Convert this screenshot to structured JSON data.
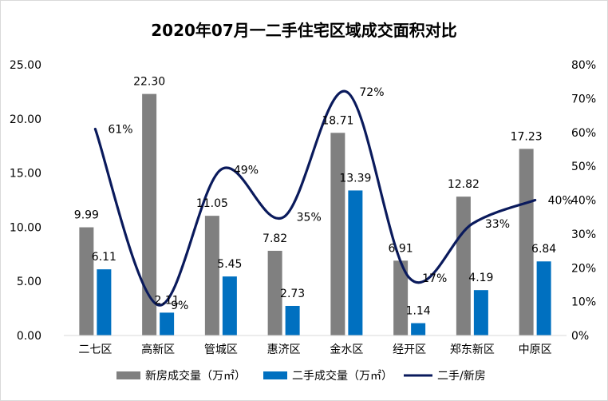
{
  "chart_data": {
    "type": "bar",
    "title": "2020年07月一二手住宅区域成交面积对比",
    "categories": [
      "二七区",
      "高新区",
      "管城区",
      "惠济区",
      "金水区",
      "经开区",
      "郑东新区",
      "中原区"
    ],
    "series": [
      {
        "name": "新房成交量（万㎡）",
        "type": "bar",
        "axis": "left",
        "color": "#808080",
        "values": [
          9.99,
          22.3,
          11.05,
          7.82,
          18.71,
          6.91,
          12.82,
          17.23
        ],
        "labels": [
          "9.99",
          "22.30",
          "11.05",
          "7.82",
          "18.71",
          "6.91",
          "12.82",
          "17.23"
        ]
      },
      {
        "name": "二手成交量（万㎡）",
        "type": "bar",
        "axis": "left",
        "color": "#0070c0",
        "values": [
          6.11,
          2.11,
          5.45,
          2.73,
          13.39,
          1.14,
          4.19,
          6.84
        ],
        "labels": [
          "6.11",
          "2.11",
          "5.45",
          "2.73",
          "13.39",
          "1.14",
          "4.19",
          "6.84"
        ]
      },
      {
        "name": "二手/新房",
        "type": "line",
        "axis": "right",
        "color": "#0a1a5c",
        "values": [
          0.61,
          0.09,
          0.49,
          0.35,
          0.72,
          0.17,
          0.33,
          0.4
        ],
        "labels": [
          "61%",
          "9%",
          "49%",
          "35%",
          "72%",
          "17%",
          "33%",
          "40%"
        ]
      }
    ],
    "y_left": {
      "min": 0,
      "max": 25,
      "step": 5,
      "tick_labels": [
        "0.00",
        "5.00",
        "10.00",
        "15.00",
        "20.00",
        "25.00"
      ]
    },
    "y_right": {
      "min": 0,
      "max": 0.8,
      "step": 0.1,
      "tick_labels": [
        "0%",
        "10%",
        "20%",
        "30%",
        "40%",
        "50%",
        "60%",
        "70%",
        "80%"
      ]
    },
    "grid": false,
    "legend_position": "bottom"
  }
}
